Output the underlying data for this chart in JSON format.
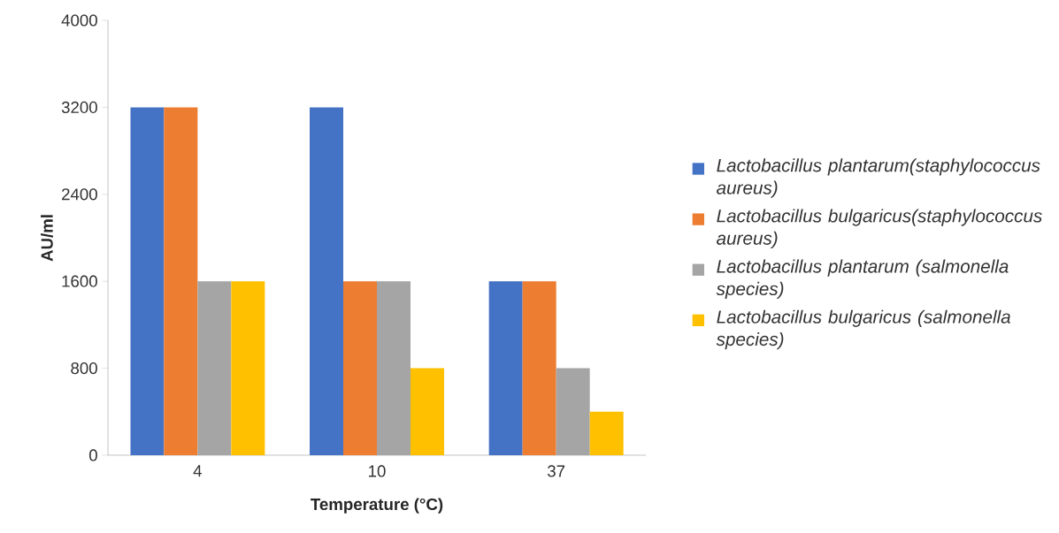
{
  "chart_data": {
    "type": "bar",
    "xlabel": "Temperature (°C)",
    "ylabel": "AU/ml",
    "categories": [
      "4",
      "10",
      "37"
    ],
    "series": [
      {
        "name": "Lactobacillus plantarum(staphylococcus aureus)",
        "color": "#4472c4",
        "values": [
          3200,
          3200,
          1600
        ]
      },
      {
        "name": "Lactobacillus bulgaricus(staphylococcus aureus)",
        "color": "#ed7d31",
        "values": [
          3200,
          1600,
          1600
        ]
      },
      {
        "name": "Lactobacillus plantarum (salmonella species)",
        "color": "#a5a5a5",
        "values": [
          1600,
          1600,
          800
        ]
      },
      {
        "name": "Lactobacillus bulgaricus (salmonella species)",
        "color": "#ffc000",
        "values": [
          1600,
          800,
          400
        ]
      }
    ],
    "ylim": [
      0,
      4000
    ],
    "yticks": [
      0,
      800,
      1600,
      2400,
      3200,
      4000
    ],
    "grid": false,
    "legend": "right"
  }
}
